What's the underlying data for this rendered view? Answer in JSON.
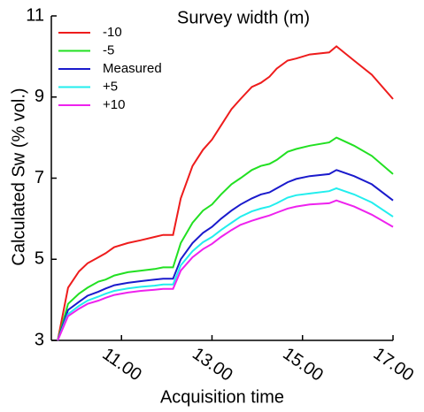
{
  "chart_data": {
    "type": "line",
    "legend_title": "Survey width (m)",
    "x_label": "Acquisition time",
    "y_label": "Calculated Sw (% vol.)",
    "legend": "upper left",
    "xlim": [
      9.45,
      17
    ],
    "xticks": [
      {
        "value": 11,
        "label": "11.00"
      },
      {
        "value": 13,
        "label": "13.00"
      },
      {
        "value": 15,
        "label": "15.00"
      },
      {
        "value": 17,
        "label": "17.00"
      }
    ],
    "ylim": [
      3,
      11
    ],
    "yticks": [
      3,
      5,
      7,
      9,
      11
    ],
    "x": [
      9.59,
      9.82,
      10.06,
      10.25,
      10.49,
      10.65,
      10.84,
      11.14,
      11.43,
      11.73,
      11.92,
      12.14,
      12.31,
      12.57,
      12.8,
      13.0,
      13.2,
      13.43,
      13.63,
      13.88,
      14.08,
      14.27,
      14.43,
      14.67,
      14.86,
      15.16,
      15.59,
      15.75,
      16.14,
      16.53,
      17.0
    ],
    "series": [
      {
        "name": "-10",
        "color": "#ee1c1c",
        "values": [
          3.0,
          4.3,
          4.7,
          4.9,
          5.05,
          5.15,
          5.3,
          5.4,
          5.47,
          5.55,
          5.6,
          5.6,
          6.5,
          7.3,
          7.7,
          7.95,
          8.3,
          8.7,
          8.95,
          9.25,
          9.35,
          9.5,
          9.7,
          9.9,
          9.95,
          10.05,
          10.1,
          10.25,
          9.9,
          9.55,
          8.95
        ]
      },
      {
        "name": "-5",
        "color": "#22e022",
        "values": [
          3.0,
          3.9,
          4.15,
          4.3,
          4.45,
          4.5,
          4.6,
          4.68,
          4.72,
          4.76,
          4.8,
          4.8,
          5.4,
          5.9,
          6.2,
          6.35,
          6.6,
          6.85,
          7.0,
          7.2,
          7.3,
          7.35,
          7.45,
          7.65,
          7.72,
          7.8,
          7.88,
          8.0,
          7.8,
          7.55,
          7.1
        ]
      },
      {
        "name": "Measured",
        "color": "#1a1acc",
        "values": [
          3.0,
          3.75,
          3.95,
          4.1,
          4.2,
          4.28,
          4.36,
          4.42,
          4.46,
          4.5,
          4.52,
          4.52,
          5.0,
          5.4,
          5.65,
          5.8,
          6.0,
          6.2,
          6.35,
          6.5,
          6.6,
          6.65,
          6.75,
          6.9,
          6.98,
          7.05,
          7.1,
          7.2,
          7.05,
          6.85,
          6.45
        ]
      },
      {
        "name": "+5",
        "color": "#22eeee",
        "values": [
          3.0,
          3.65,
          3.85,
          3.98,
          4.08,
          4.15,
          4.22,
          4.28,
          4.32,
          4.35,
          4.38,
          4.38,
          4.85,
          5.2,
          5.42,
          5.55,
          5.72,
          5.9,
          6.05,
          6.18,
          6.25,
          6.3,
          6.38,
          6.52,
          6.58,
          6.62,
          6.68,
          6.75,
          6.6,
          6.4,
          6.05
        ]
      },
      {
        "name": "+10",
        "color": "#ee22ee",
        "values": [
          3.0,
          3.6,
          3.78,
          3.9,
          3.98,
          4.05,
          4.12,
          4.18,
          4.22,
          4.25,
          4.27,
          4.27,
          4.72,
          5.05,
          5.25,
          5.38,
          5.55,
          5.72,
          5.85,
          5.95,
          6.02,
          6.08,
          6.15,
          6.25,
          6.3,
          6.35,
          6.38,
          6.45,
          6.3,
          6.1,
          5.8
        ]
      }
    ]
  }
}
